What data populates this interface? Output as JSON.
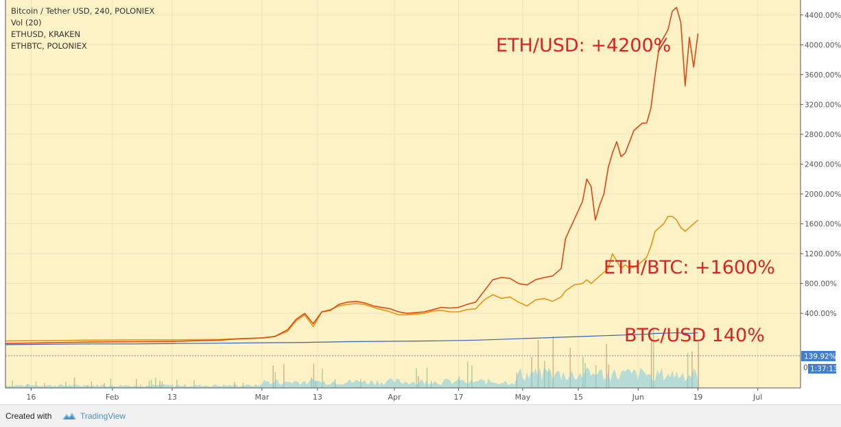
{
  "legend": {
    "line1": "Bitcoin / Tether USD, 240, POLONIEX",
    "line2": "Vol (20)",
    "line3": "ETHUSD, KRAKEN",
    "line4": "ETHBTC, POLONIEX"
  },
  "annotations": {
    "eth_usd": "ETH/USD: +4200%",
    "eth_btc": "ETH/BTC: +1600%",
    "btc_usd": "BTC/USD 140%"
  },
  "badges": {
    "price": "139.92%",
    "timer": "1:37:13",
    "zero": "0"
  },
  "footer": {
    "created_with": "Created with",
    "brand": "TradingView"
  },
  "colors": {
    "background": "#fdf2c6",
    "eth_usd": "#e2450f",
    "eth_btc": "#e8930c",
    "btc_usd": "#3a5fb0",
    "volume_area": "#7ec8e3",
    "badge": "#3f7fd0"
  },
  "chart_data": {
    "type": "line",
    "title": "Bitcoin / Tether USD, 240, POLONIEX",
    "x_ticks": [
      "16",
      "Feb",
      "13",
      "Mar",
      "13",
      "Apr",
      "17",
      "May",
      "15",
      "Jun",
      "19",
      "Jul"
    ],
    "y_ticks": [
      "400.00%",
      "800.00%",
      "1200.00%",
      "1600.00%",
      "2000.00%",
      "2400.00%",
      "2800.00%",
      "3200.00%",
      "3600.00%",
      "4000.00%",
      "4400.00%"
    ],
    "ylim": [
      -600,
      4600
    ],
    "grid": true,
    "x_domain": [
      0,
      163
    ],
    "x_tick_days": [
      6,
      25,
      39,
      60,
      73,
      91,
      106,
      121,
      134,
      148,
      162,
      176
    ],
    "series": [
      {
        "name": "ETHUSD, KRAKEN",
        "x": [
          0,
          10,
          20,
          30,
          40,
          50,
          55,
          60,
          63,
          66,
          68,
          70,
          72,
          74,
          76,
          78,
          80,
          82,
          84,
          86,
          88,
          90,
          92,
          94,
          96,
          98,
          100,
          102,
          104,
          106,
          108,
          110,
          112,
          114,
          116,
          118,
          120,
          122,
          124,
          126,
          128,
          130,
          131,
          133,
          135,
          136,
          137,
          138,
          139,
          140,
          141,
          142,
          143,
          144,
          145,
          146,
          147,
          148,
          149,
          150,
          151,
          152,
          153,
          154,
          155,
          156,
          157,
          158,
          159,
          160,
          161,
          162
        ],
        "values": [
          -5,
          5,
          15,
          20,
          25,
          40,
          60,
          70,
          90,
          180,
          320,
          400,
          260,
          420,
          440,
          520,
          550,
          560,
          540,
          500,
          480,
          460,
          420,
          400,
          410,
          420,
          450,
          480,
          470,
          480,
          520,
          550,
          700,
          850,
          880,
          870,
          800,
          780,
          850,
          880,
          900,
          1000,
          1400,
          1650,
          1900,
          2200,
          2100,
          1650,
          1850,
          2000,
          2350,
          2550,
          2700,
          2500,
          2550,
          2700,
          2850,
          2900,
          2950,
          2950,
          3150,
          3600,
          4000,
          4100,
          4200,
          4450,
          4500,
          4300,
          3450,
          4100,
          3700,
          4150
        ]
      },
      {
        "name": "ETHBTC, POLONIEX",
        "x": [
          0,
          10,
          20,
          30,
          40,
          50,
          55,
          60,
          63,
          66,
          68,
          70,
          72,
          74,
          76,
          78,
          80,
          82,
          84,
          86,
          88,
          90,
          92,
          94,
          96,
          98,
          100,
          102,
          104,
          106,
          108,
          110,
          112,
          114,
          116,
          118,
          120,
          122,
          124,
          126,
          128,
          130,
          131,
          133,
          135,
          136,
          137,
          138,
          139,
          140,
          141,
          142,
          143,
          144,
          145,
          146,
          147,
          148,
          149,
          150,
          151,
          152,
          153,
          154,
          155,
          156,
          157,
          158,
          159,
          160,
          161,
          162
        ],
        "values": [
          30,
          35,
          40,
          45,
          45,
          50,
          60,
          70,
          90,
          160,
          300,
          380,
          220,
          420,
          450,
          500,
          520,
          530,
          520,
          480,
          450,
          420,
          380,
          380,
          390,
          400,
          430,
          440,
          420,
          420,
          450,
          460,
          580,
          650,
          600,
          620,
          550,
          500,
          580,
          600,
          560,
          620,
          700,
          780,
          800,
          850,
          800,
          850,
          900,
          950,
          1000,
          1200,
          1100,
          1000,
          1050,
          1000,
          1020,
          1050,
          1100,
          1150,
          1300,
          1500,
          1550,
          1600,
          1700,
          1700,
          1650,
          1550,
          1500,
          1550,
          1600,
          1650
        ]
      },
      {
        "name": "Bitcoin / Tether USD, 240, POLONIEX",
        "x": [
          0,
          10,
          20,
          30,
          40,
          50,
          60,
          70,
          80,
          90,
          100,
          110,
          115,
          120,
          125,
          130,
          135,
          140,
          145,
          150,
          152,
          155,
          157,
          160,
          162
        ],
        "values": [
          -20,
          -15,
          -10,
          -10,
          -5,
          0,
          5,
          10,
          20,
          25,
          30,
          40,
          50,
          60,
          70,
          80,
          90,
          100,
          110,
          120,
          130,
          135,
          140,
          130,
          140
        ]
      }
    ]
  }
}
